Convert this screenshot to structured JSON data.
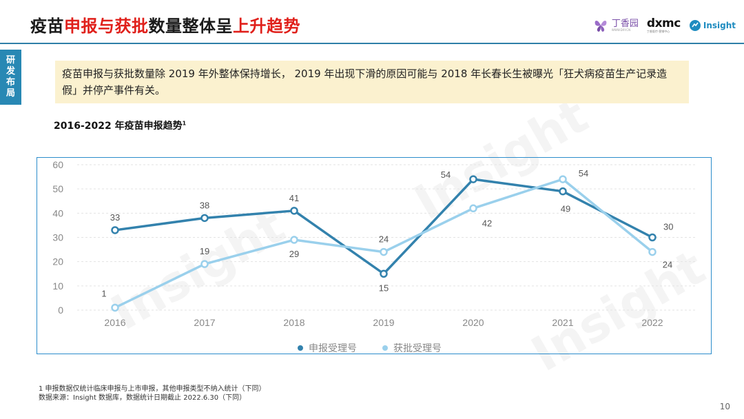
{
  "header": {
    "title_parts": [
      {
        "text": "疫苗",
        "style": "dark"
      },
      {
        "text": "申报与获批",
        "style": "red"
      },
      {
        "text": "数量整体呈",
        "style": "dark"
      },
      {
        "text": "上升趋势",
        "style": "red"
      }
    ],
    "logos": {
      "dxy": "丁香园",
      "dxy_sub": "WWW.DXY.CN",
      "dxmc": "dxmc",
      "dxmc_sub": "丁香医疗·营销中心",
      "insight": "Insight"
    }
  },
  "side_tab": {
    "label": [
      "研",
      "发",
      "布",
      "局"
    ]
  },
  "callout": {
    "text": "疫苗申报与获批数量除 2019 年外整体保持增长， 2019 年出现下滑的原因可能与 2018 年长春长生被曝光「狂犬病疫苗生产记录造假」并停产事件有关。"
  },
  "chart_section": {
    "subtitle": "2016-2022 年疫苗申报趋势",
    "subtitle_sup": "1"
  },
  "chart_data": {
    "type": "line",
    "x": [
      "2016",
      "2017",
      "2018",
      "2019",
      "2020",
      "2021",
      "2022"
    ],
    "ylim": [
      0,
      60
    ],
    "yticks": [
      "0",
      "10",
      "20",
      "30",
      "40",
      "50",
      "60"
    ],
    "grid": true,
    "legend_position": "bottom",
    "series": [
      {
        "name": "申报受理号",
        "color": "#3382ad",
        "values": [
          33,
          38,
          41,
          15,
          54,
          49,
          30
        ]
      },
      {
        "name": "获批受理号",
        "color": "#9ad0ec",
        "values": [
          1,
          19,
          29,
          24,
          42,
          54,
          24
        ]
      }
    ]
  },
  "footnote": {
    "line1": "1 申报数据仅统计临床申报与上市申报，其他申报类型不纳入统计（下同）",
    "line2": "数据来源：Insight 数据库，数据统计日期截止 2022.6.30（下同）"
  },
  "page_number": "10",
  "watermark": "Insight"
}
